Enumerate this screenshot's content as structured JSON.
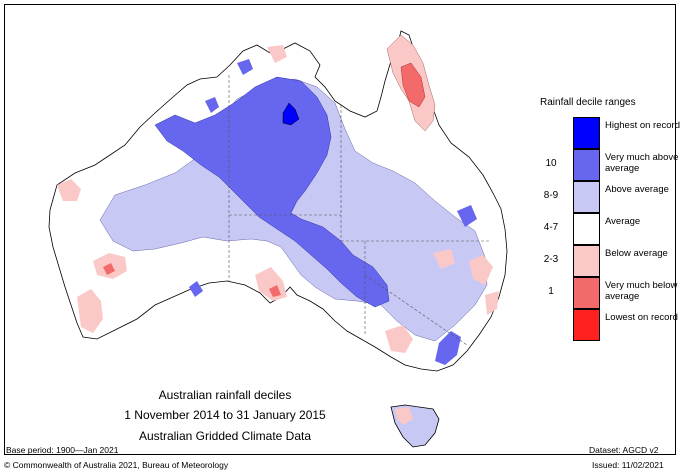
{
  "legend": {
    "title": "Rainfall decile ranges",
    "items": [
      {
        "range": "",
        "label": "Highest on record",
        "color": "#0000ff"
      },
      {
        "range": "10",
        "label": "Very much above average",
        "color": "#6666ee"
      },
      {
        "range": "8-9",
        "label": "Above average",
        "color": "#c8c8f5"
      },
      {
        "range": "4-7",
        "label": "Average",
        "color": "#ffffff"
      },
      {
        "range": "2-3",
        "label": "Below average",
        "color": "#fbc8c8"
      },
      {
        "range": "1",
        "label": "Very much below average",
        "color": "#f26a6a"
      },
      {
        "range": "",
        "label": "Lowest on record",
        "color": "#ff2020"
      }
    ]
  },
  "caption": {
    "line1": "Australian rainfall deciles",
    "line2": "1 November 2014 to 31 January 2015",
    "line3": "Australian Gridded Climate Data"
  },
  "footer": {
    "base_period": "Base period: 1900—Jan 2021",
    "dataset": "Dataset: AGCD v2",
    "copyright": "© Commonwealth of Australia 2021, Bureau of Meteorology",
    "issued": "Issued: 11/02/2021"
  }
}
